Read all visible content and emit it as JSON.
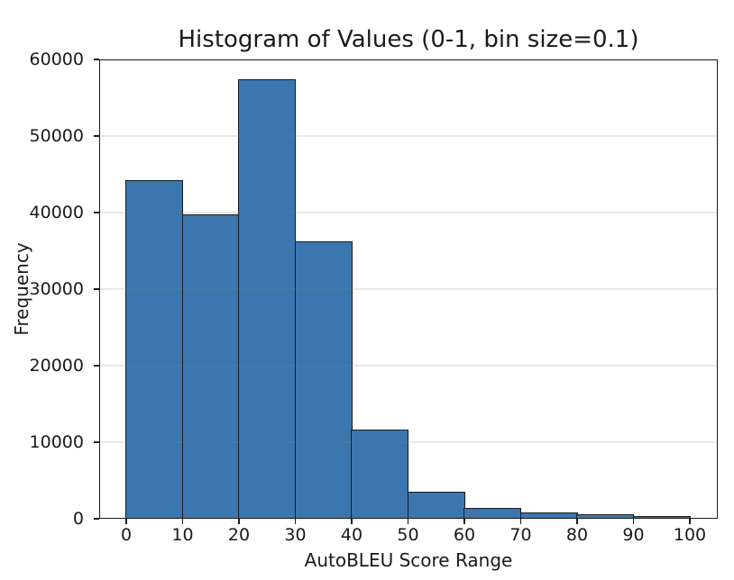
{
  "chart_data": {
    "type": "bar",
    "subtype": "histogram",
    "title": "Histogram of Values (0-1, bin size=0.1)",
    "xlabel": "AutoBLEU Score Range",
    "ylabel": "Frequency",
    "bin_size": 10,
    "bin_edges": [
      0,
      10,
      20,
      30,
      40,
      50,
      60,
      70,
      80,
      90,
      100
    ],
    "categories": [
      "0-10",
      "10-20",
      "20-30",
      "30-40",
      "40-50",
      "50-60",
      "60-70",
      "70-80",
      "80-90",
      "90-100"
    ],
    "values": [
      44200,
      39700,
      57300,
      36100,
      11500,
      3400,
      1350,
      700,
      450,
      250
    ],
    "xticks": [
      0,
      10,
      20,
      30,
      40,
      50,
      60,
      70,
      80,
      90,
      100
    ],
    "yticks": [
      0,
      10000,
      20000,
      30000,
      40000,
      50000,
      60000
    ],
    "xlim": [
      -5,
      105
    ],
    "ylim": [
      0,
      60000
    ],
    "grid": "y",
    "grid_over_bars": true,
    "legend_position": "none",
    "colors": {
      "bar_fill": "#3B76AF",
      "bar_edge": "#161b22",
      "grid": "#e8e8e8",
      "spine": "#1a1a1a",
      "text": "#1a1a1a",
      "background": "#ffffff"
    }
  }
}
